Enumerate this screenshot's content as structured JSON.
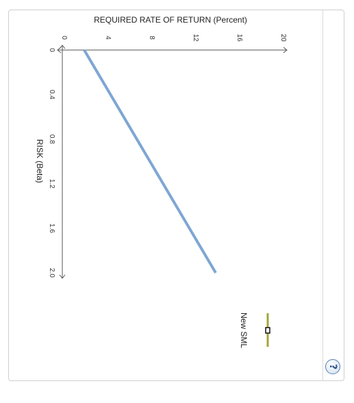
{
  "chart_data": {
    "type": "line",
    "title": "",
    "ylabel": "REQUIRED RATE OF RETURN (Percent)",
    "xlabel": "RISK (Beta)",
    "x_ticks": [
      "0",
      "0.4",
      "0.8",
      "1.2",
      "1.6",
      "2.0"
    ],
    "y_ticks": [
      "0",
      "4",
      "8",
      "12",
      "16",
      "20"
    ],
    "xlim": [
      0,
      2.0
    ],
    "ylim": [
      0,
      20
    ],
    "grid": false,
    "series": [
      {
        "name": "",
        "color": "#7ea6d3",
        "x": [
          0,
          2.0
        ],
        "y": [
          2,
          14
        ]
      }
    ],
    "legend": {
      "position": "right",
      "items": [
        {
          "label": "New SML",
          "color": "#a3a53a",
          "marker": "square-outline"
        }
      ]
    }
  },
  "help_icon": "help-icon"
}
